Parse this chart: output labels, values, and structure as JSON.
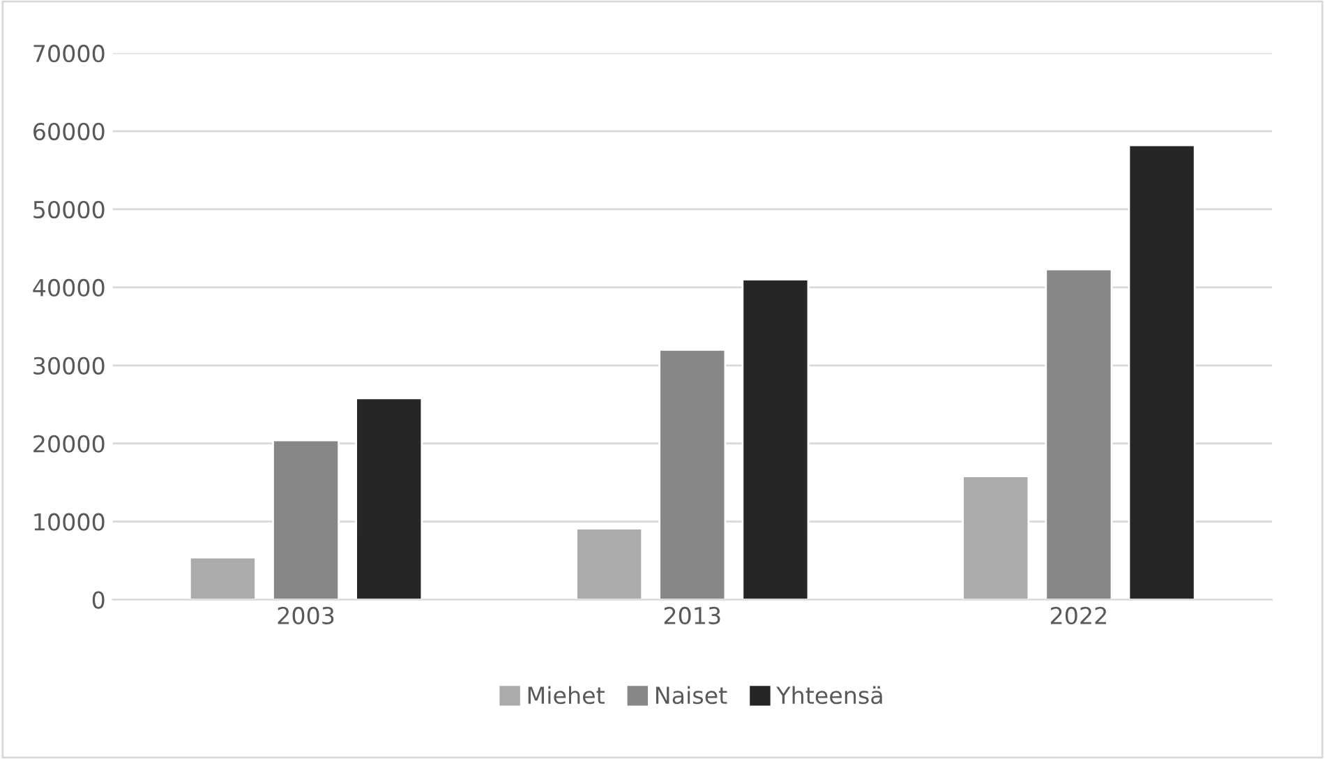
{
  "chart_data": {
    "type": "bar",
    "categories": [
      "2003",
      "2013",
      "2022"
    ],
    "series": [
      {
        "name": "Miehet",
        "color": "#ababab",
        "values": [
          5400,
          9100,
          15800
        ]
      },
      {
        "name": "Naiset",
        "color": "#878787",
        "values": [
          20400,
          32000,
          42300
        ]
      },
      {
        "name": "Yhteensä",
        "color": "#262626",
        "values": [
          25800,
          41000,
          58200
        ]
      }
    ],
    "ylim": [
      0,
      70000
    ],
    "yticks": [
      0,
      10000,
      20000,
      30000,
      40000,
      50000,
      60000,
      70000
    ],
    "grid": "y",
    "legend": "bottom"
  }
}
